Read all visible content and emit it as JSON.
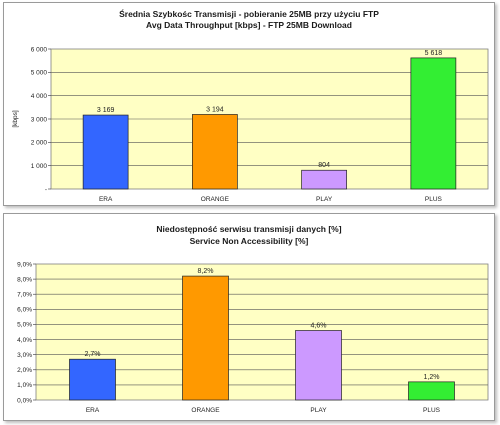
{
  "chart_data": [
    {
      "type": "bar",
      "title": "Średnia Szybkośc Transmisji - pobieranie 25MB przy użyciu FTP",
      "subtitle": "Avg Data Throughput [kbps] - FTP 25MB Download",
      "ylabel": "[kbps]",
      "xlabel": "",
      "categories": [
        "ERA",
        "ORANGE",
        "PLAY",
        "PLUS"
      ],
      "values": [
        3169,
        3194,
        804,
        5618
      ],
      "data_labels": [
        "3 169",
        "3 194",
        "804",
        "5 618"
      ],
      "ylim": [
        0,
        6000
      ],
      "yticks": [
        0,
        1000,
        2000,
        3000,
        4000,
        5000,
        6000
      ],
      "ytick_labels": [
        "-",
        "1 000",
        "2 000",
        "3 000",
        "4 000",
        "5 000",
        "6 000"
      ],
      "grid": true,
      "legend": "none",
      "plot_background": "#ffffc4",
      "colors": [
        "#3366ff",
        "#ff9900",
        "#cc99ff",
        "#33ee33"
      ]
    },
    {
      "type": "bar",
      "title": "Niedostępność serwisu transmisji danych [%]",
      "subtitle": "Service Non Accessibility [%]",
      "ylabel": "",
      "xlabel": "",
      "categories": [
        "ERA",
        "ORANGE",
        "PLAY",
        "PLUS"
      ],
      "values": [
        2.7,
        8.2,
        4.6,
        1.2
      ],
      "data_labels": [
        "2,7%",
        "8,2%",
        "4,6%",
        "1,2%"
      ],
      "ylim": [
        0,
        9
      ],
      "yticks": [
        0,
        1,
        2,
        3,
        4,
        5,
        6,
        7,
        8,
        9
      ],
      "ytick_labels": [
        "0,0%",
        "1,0%",
        "2,0%",
        "3,0%",
        "4,0%",
        "5,0%",
        "6,0%",
        "7,0%",
        "8,0%",
        "9,0%"
      ],
      "grid": true,
      "legend": "none",
      "plot_background": "#ffffc4",
      "colors": [
        "#3366ff",
        "#ff9900",
        "#cc99ff",
        "#33ee33"
      ]
    }
  ]
}
